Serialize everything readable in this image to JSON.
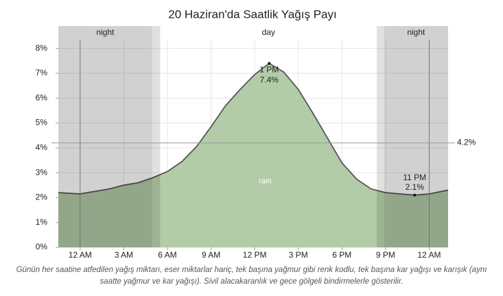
{
  "chart_data": {
    "type": "area",
    "title": "20 Haziran'da Saatlik Yağış Payı",
    "caption": "Günün her saatine atfedilen yağış miktarı, eser miktarlar hariç, tek başına yağmur gibi renk kodlu, tek başına kar yağışı ve karışık (aynı saatte yağmur ve kar yağışı). Sivil alacakaranlık ve gece gölgeli bindirmelerle gösterilir.",
    "x": [
      -1.5,
      0,
      1,
      2,
      3,
      4,
      5,
      6,
      7,
      8,
      9,
      10,
      11,
      12,
      13,
      14,
      15,
      16,
      17,
      18,
      19,
      20,
      21,
      22,
      23,
      24,
      25.3
    ],
    "series": [
      {
        "name": "rain",
        "color": "#b3cca8",
        "values": [
          2.2,
          2.15,
          2.25,
          2.35,
          2.5,
          2.6,
          2.8,
          3.05,
          3.45,
          4.05,
          4.85,
          5.7,
          6.35,
          6.95,
          7.4,
          7.05,
          6.35,
          5.4,
          4.4,
          3.4,
          2.75,
          2.35,
          2.2,
          2.15,
          2.1,
          2.15,
          2.3
        ]
      }
    ],
    "xlim": [
      -1.5,
      25.3
    ],
    "xticks": [
      {
        "value": 0,
        "label": "12 AM"
      },
      {
        "value": 3,
        "label": "3 AM"
      },
      {
        "value": 6,
        "label": "6 AM"
      },
      {
        "value": 9,
        "label": "9 AM"
      },
      {
        "value": 12,
        "label": "12 PM"
      },
      {
        "value": 15,
        "label": "3 PM"
      },
      {
        "value": 18,
        "label": "6 PM"
      },
      {
        "value": 21,
        "label": "9 PM"
      },
      {
        "value": 24,
        "label": "12 AM"
      }
    ],
    "ylim": [
      0,
      8.9
    ],
    "yticks": [
      {
        "value": 0,
        "label": "0%"
      },
      {
        "value": 1,
        "label": "1%"
      },
      {
        "value": 2,
        "label": "2%"
      },
      {
        "value": 3,
        "label": "3%"
      },
      {
        "value": 4,
        "label": "4%"
      },
      {
        "value": 5,
        "label": "5%"
      },
      {
        "value": 6,
        "label": "6%"
      },
      {
        "value": 7,
        "label": "7%"
      },
      {
        "value": 8,
        "label": "8%"
      }
    ],
    "grid": true,
    "periods": [
      {
        "label": "night",
        "from": -1.5,
        "to": 4.95
      },
      {
        "label": "day",
        "from": 5.5,
        "to": 20.4
      },
      {
        "label": "night",
        "from": 20.9,
        "to": 25.3
      }
    ],
    "twilight": [
      [
        4.95,
        5.5
      ],
      [
        20.4,
        20.9
      ]
    ],
    "reference": {
      "value": 4.2,
      "label": "4.2%"
    },
    "highlights": [
      {
        "time": "1 PM",
        "x": 13,
        "value": 7.4,
        "value_label": "7.4%"
      },
      {
        "time": "11 PM",
        "x": 23,
        "value": 2.1,
        "value_label": "2.1%"
      }
    ]
  }
}
